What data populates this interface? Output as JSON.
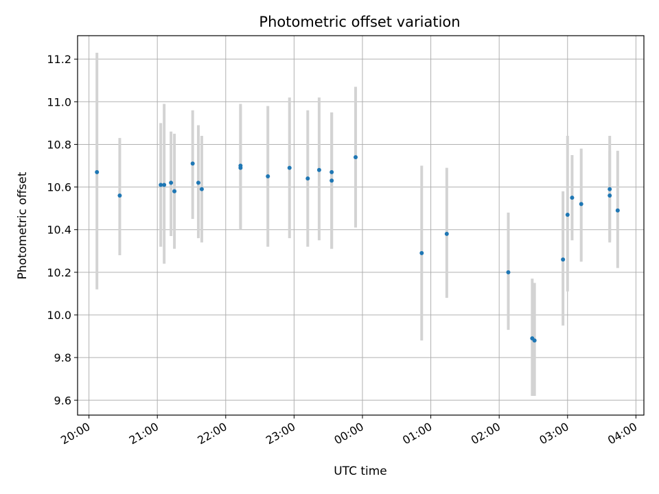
{
  "chart_data": {
    "type": "scatter",
    "title": "Photometric offset variation",
    "xlabel": "UTC time",
    "ylabel": "Photometric offset",
    "x_axis_kind": "time",
    "xlim": [
      "19:50",
      "04:07"
    ],
    "ylim": [
      9.53,
      11.31
    ],
    "xticks": [
      "20:00",
      "21:00",
      "22:00",
      "23:00",
      "00:00",
      "01:00",
      "02:00",
      "03:00",
      "04:00"
    ],
    "yticks": [
      "9.6",
      "9.8",
      "10.0",
      "10.2",
      "10.4",
      "10.6",
      "10.8",
      "11.0",
      "11.2"
    ],
    "grid": true,
    "marker_color": "#1f77b4",
    "errorbar_color": "#d3d3d3",
    "series": [
      {
        "x": [
          "20:07",
          "20:27",
          "21:03",
          "21:06",
          "21:12",
          "21:15",
          "21:31",
          "21:36",
          "21:39",
          "22:13",
          "22:13",
          "22:37",
          "22:56",
          "23:12",
          "23:22",
          "23:33",
          "23:33",
          "23:54",
          "00:52",
          "01:14",
          "02:08",
          "02:29",
          "02:31",
          "02:56",
          "03:00",
          "03:04",
          "03:12",
          "03:37",
          "03:37",
          "03:44"
        ],
        "y": [
          10.67,
          10.56,
          10.61,
          10.61,
          10.62,
          10.58,
          10.71,
          10.62,
          10.59,
          10.7,
          10.69,
          10.65,
          10.69,
          10.64,
          10.68,
          10.67,
          10.63,
          10.74,
          10.29,
          10.38,
          10.2,
          9.89,
          9.88,
          10.26,
          10.47,
          10.55,
          10.52,
          10.59,
          10.56,
          10.49
        ],
        "err_low": [
          10.12,
          10.28,
          10.32,
          10.24,
          10.37,
          10.31,
          10.45,
          10.36,
          10.34,
          10.4,
          10.41,
          10.32,
          10.36,
          10.32,
          10.35,
          10.31,
          10.31,
          10.41,
          9.88,
          10.08,
          9.93,
          9.62,
          9.62,
          9.95,
          10.11,
          10.35,
          10.25,
          10.35,
          10.34,
          10.22
        ],
        "err_high": [
          11.23,
          10.83,
          10.9,
          10.99,
          10.86,
          10.85,
          10.96,
          10.89,
          10.84,
          10.99,
          10.98,
          10.98,
          11.02,
          10.96,
          11.02,
          10.95,
          10.95,
          11.07,
          10.7,
          10.69,
          10.48,
          10.17,
          10.15,
          10.58,
          10.84,
          10.75,
          10.78,
          10.84,
          10.77,
          10.77
        ]
      }
    ]
  }
}
